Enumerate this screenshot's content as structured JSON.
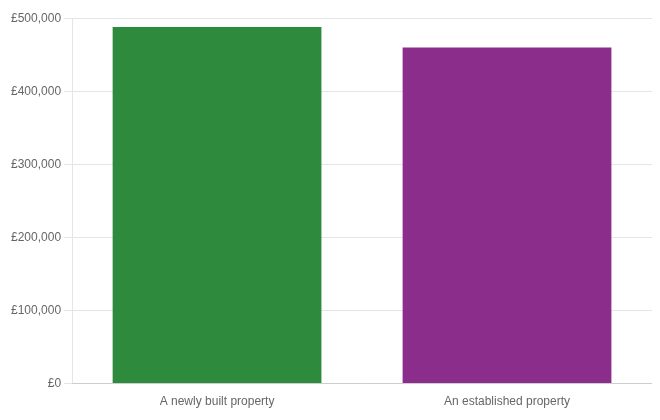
{
  "chart_data": {
    "type": "bar",
    "categories": [
      "A newly built property",
      "An established property"
    ],
    "values": [
      488000,
      460000
    ],
    "colors": [
      "#2e8b3e",
      "#8b2d8b"
    ],
    "ylim": [
      0,
      500000
    ],
    "yticks": [
      {
        "value": 0,
        "label": "£0"
      },
      {
        "value": 100000,
        "label": "£100,000"
      },
      {
        "value": 200000,
        "label": "£200,000"
      },
      {
        "value": 300000,
        "label": "£300,000"
      },
      {
        "value": 400000,
        "label": "£400,000"
      },
      {
        "value": 500000,
        "label": "£500,000"
      }
    ],
    "grid": true
  }
}
